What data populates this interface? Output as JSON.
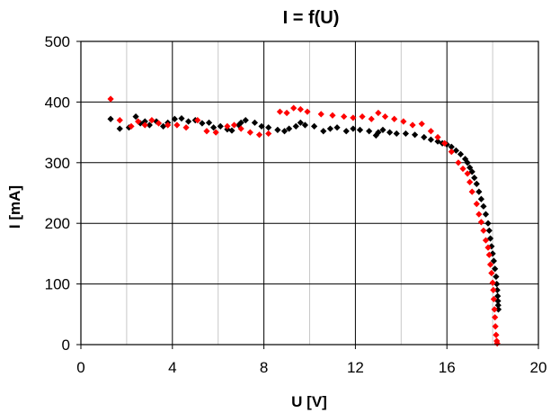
{
  "chart_data": {
    "type": "scatter",
    "title": "I = f(U)",
    "xlabel": "U [V]",
    "ylabel": "I [mA]",
    "xlim": [
      0,
      20
    ],
    "ylim": [
      0,
      500
    ],
    "xticks": [
      0,
      4,
      8,
      12,
      16,
      20
    ],
    "yticks": [
      0,
      100,
      200,
      300,
      400,
      500
    ],
    "minor_x_grid_step": 2,
    "grid": true,
    "legend": "none",
    "series": [
      {
        "color": "#000000",
        "marker": "diamond",
        "points": [
          [
            1.3,
            372
          ],
          [
            1.7,
            356
          ],
          [
            2.1,
            358
          ],
          [
            2.4,
            376
          ],
          [
            2.6,
            365
          ],
          [
            2.8,
            368
          ],
          [
            3.0,
            362
          ],
          [
            3.3,
            368
          ],
          [
            3.6,
            360
          ],
          [
            3.8,
            366
          ],
          [
            4.1,
            372
          ],
          [
            4.4,
            373
          ],
          [
            4.7,
            368
          ],
          [
            5.0,
            370
          ],
          [
            5.3,
            365
          ],
          [
            5.6,
            366
          ],
          [
            5.8,
            358
          ],
          [
            6.1,
            360
          ],
          [
            6.4,
            355
          ],
          [
            6.6,
            353
          ],
          [
            6.9,
            362
          ],
          [
            7.0,
            366
          ],
          [
            7.2,
            370
          ],
          [
            7.6,
            366
          ],
          [
            7.9,
            360
          ],
          [
            8.2,
            358
          ],
          [
            8.6,
            354
          ],
          [
            8.9,
            352
          ],
          [
            9.1,
            356
          ],
          [
            9.4,
            360
          ],
          [
            9.6,
            366
          ],
          [
            9.8,
            362
          ],
          [
            10.2,
            360
          ],
          [
            10.6,
            352
          ],
          [
            10.9,
            356
          ],
          [
            11.2,
            358
          ],
          [
            11.6,
            352
          ],
          [
            11.9,
            356
          ],
          [
            12.2,
            354
          ],
          [
            12.6,
            352
          ],
          [
            12.9,
            345
          ],
          [
            13.0,
            350
          ],
          [
            13.2,
            354
          ],
          [
            13.5,
            350
          ],
          [
            13.8,
            348
          ],
          [
            14.2,
            348
          ],
          [
            14.6,
            346
          ],
          [
            15.0,
            342
          ],
          [
            15.3,
            338
          ],
          [
            15.6,
            335
          ],
          [
            15.8,
            332
          ],
          [
            16.0,
            330
          ],
          [
            16.2,
            326
          ],
          [
            16.4,
            320
          ],
          [
            16.6,
            314
          ],
          [
            16.8,
            306
          ],
          [
            16.9,
            300
          ],
          [
            17.0,
            292
          ],
          [
            17.1,
            285
          ],
          [
            17.2,
            275
          ],
          [
            17.3,
            265
          ],
          [
            17.4,
            252
          ],
          [
            17.5,
            240
          ],
          [
            17.6,
            228
          ],
          [
            17.7,
            215
          ],
          [
            17.8,
            200
          ],
          [
            17.85,
            188
          ],
          [
            17.9,
            175
          ],
          [
            17.95,
            162
          ],
          [
            18.0,
            150
          ],
          [
            18.05,
            138
          ],
          [
            18.1,
            125
          ],
          [
            18.15,
            112
          ],
          [
            18.18,
            100
          ],
          [
            18.2,
            90
          ],
          [
            18.22,
            80
          ],
          [
            18.23,
            72
          ],
          [
            18.24,
            65
          ],
          [
            18.25,
            58
          ]
        ]
      },
      {
        "color": "#ff0000",
        "marker": "diamond",
        "points": [
          [
            1.3,
            405
          ],
          [
            1.7,
            370
          ],
          [
            2.2,
            360
          ],
          [
            2.5,
            368
          ],
          [
            2.8,
            362
          ],
          [
            3.1,
            370
          ],
          [
            3.4,
            365
          ],
          [
            3.8,
            362
          ],
          [
            4.2,
            362
          ],
          [
            4.6,
            358
          ],
          [
            5.1,
            370
          ],
          [
            5.5,
            352
          ],
          [
            5.9,
            350
          ],
          [
            6.4,
            360
          ],
          [
            6.7,
            362
          ],
          [
            7.0,
            356
          ],
          [
            7.4,
            350
          ],
          [
            7.8,
            346
          ],
          [
            8.2,
            348
          ],
          [
            8.7,
            384
          ],
          [
            9.0,
            382
          ],
          [
            9.3,
            390
          ],
          [
            9.6,
            388
          ],
          [
            9.9,
            384
          ],
          [
            10.5,
            380
          ],
          [
            11.0,
            378
          ],
          [
            11.5,
            376
          ],
          [
            11.9,
            374
          ],
          [
            12.3,
            376
          ],
          [
            12.7,
            372
          ],
          [
            13.0,
            382
          ],
          [
            13.3,
            376
          ],
          [
            13.7,
            372
          ],
          [
            14.1,
            368
          ],
          [
            14.5,
            362
          ],
          [
            14.9,
            364
          ],
          [
            15.3,
            352
          ],
          [
            15.6,
            342
          ],
          [
            15.9,
            332
          ],
          [
            16.2,
            318
          ],
          [
            16.5,
            300
          ],
          [
            16.7,
            290
          ],
          [
            16.9,
            282
          ],
          [
            17.0,
            268
          ],
          [
            17.1,
            252
          ],
          [
            17.3,
            232
          ],
          [
            17.4,
            215
          ],
          [
            17.5,
            202
          ],
          [
            17.6,
            188
          ],
          [
            17.7,
            172
          ],
          [
            17.8,
            160
          ],
          [
            17.85,
            148
          ],
          [
            17.9,
            132
          ],
          [
            17.95,
            118
          ],
          [
            18.0,
            102
          ],
          [
            18.03,
            90
          ],
          [
            18.05,
            75
          ],
          [
            18.08,
            58
          ],
          [
            18.1,
            45
          ],
          [
            18.12,
            30
          ],
          [
            18.15,
            16
          ],
          [
            18.18,
            6
          ],
          [
            18.2,
            2
          ]
        ]
      }
    ]
  }
}
